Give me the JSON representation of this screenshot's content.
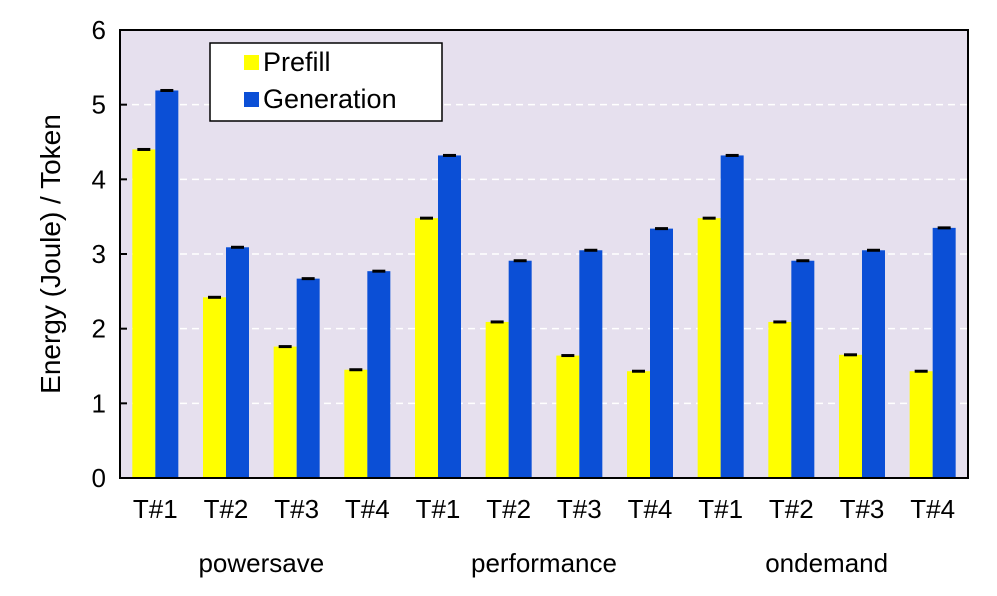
{
  "chart_data": {
    "type": "bar",
    "title": "",
    "ylabel": "Energy (Joule) / Token",
    "xlabel": "",
    "ylim": [
      0,
      6
    ],
    "yticks": [
      "0",
      "1",
      "2",
      "3",
      "4",
      "5",
      "6"
    ],
    "grid": "horizontal dashed",
    "legend_position": "top-left",
    "groups": [
      "powersave",
      "performance",
      "ondemand"
    ],
    "categories": [
      "T#1",
      "T#2",
      "T#3",
      "T#4",
      "T#1",
      "T#2",
      "T#3",
      "T#4",
      "T#1",
      "T#2",
      "T#3",
      "T#4"
    ],
    "series": [
      {
        "name": "Prefill",
        "color": "#ffff00",
        "values": [
          4.4,
          2.42,
          1.76,
          1.45,
          3.48,
          2.09,
          1.64,
          1.43,
          3.48,
          2.09,
          1.65,
          1.43
        ]
      },
      {
        "name": "Generation",
        "color": "#0b4fd6",
        "values": [
          5.19,
          3.09,
          2.67,
          2.77,
          4.32,
          2.91,
          3.05,
          3.34,
          4.32,
          2.91,
          3.05,
          3.35
        ]
      }
    ]
  }
}
